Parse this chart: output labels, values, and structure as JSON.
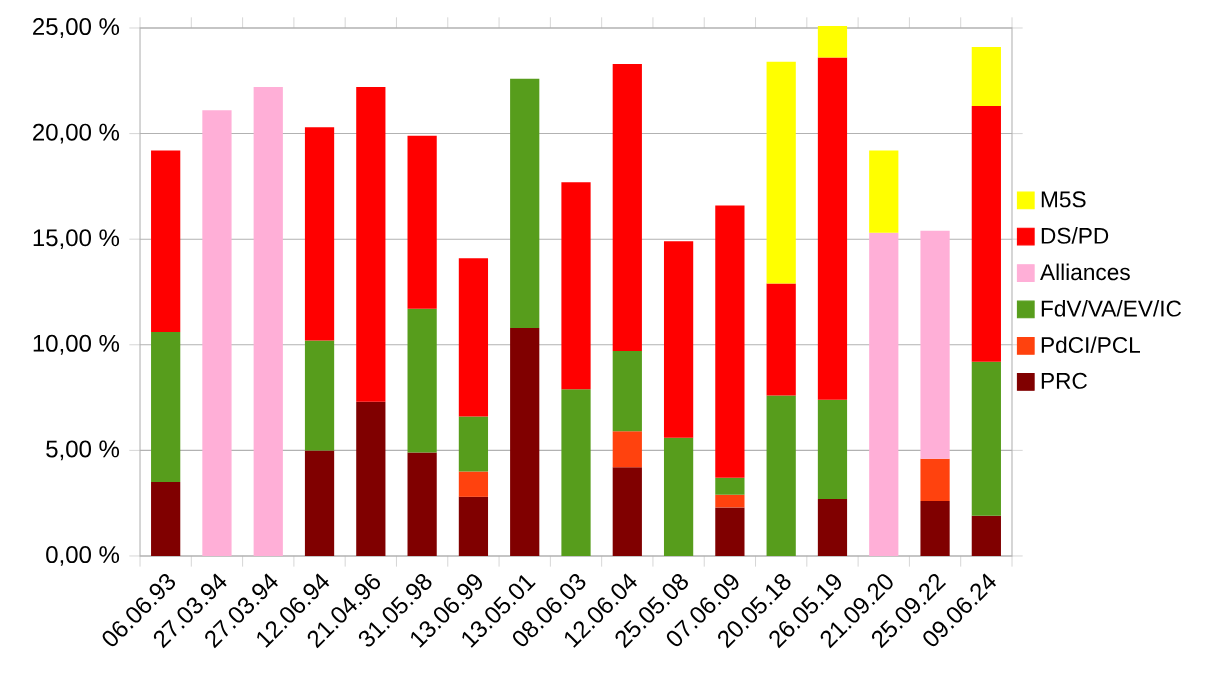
{
  "chart_data": {
    "type": "bar",
    "stacked": true,
    "categories": [
      "06.06.93",
      "27.03.94",
      "27.03.94",
      "12.06.94",
      "21.04.96",
      "31.05.98",
      "13.06.99",
      "13.05.01",
      "08.06.03",
      "12.06.04",
      "25.05.08",
      "07.06.09",
      "20.05.18",
      "26.05.19",
      "21.09.20",
      "25.09.22",
      "09.06.24"
    ],
    "series": [
      {
        "name": "PRC",
        "color": "#800000",
        "values": [
          3.5,
          null,
          null,
          5.0,
          7.3,
          4.9,
          2.8,
          10.8,
          null,
          4.2,
          null,
          2.3,
          null,
          2.7,
          null,
          2.6,
          1.9
        ]
      },
      {
        "name": "PdCI/PCL",
        "color": "#ff420e",
        "values": [
          null,
          null,
          null,
          null,
          null,
          null,
          1.2,
          null,
          null,
          1.7,
          null,
          0.6,
          null,
          null,
          null,
          2.0,
          null
        ]
      },
      {
        "name": "FdV/VA/EV/IC",
        "color": "#579d1c",
        "values": [
          7.1,
          null,
          null,
          5.2,
          null,
          6.8,
          2.6,
          11.8,
          7.9,
          3.8,
          5.6,
          0.8,
          7.6,
          4.7,
          null,
          null,
          7.3
        ]
      },
      {
        "name": "Alliances",
        "color": "#ffafd7",
        "values": [
          null,
          21.1,
          22.2,
          null,
          null,
          null,
          null,
          null,
          null,
          null,
          null,
          null,
          null,
          null,
          15.3,
          10.8,
          null
        ]
      },
      {
        "name": "DS/PD",
        "color": "#ff0000",
        "values": [
          8.6,
          null,
          null,
          10.1,
          14.9,
          8.2,
          7.5,
          null,
          9.8,
          13.6,
          9.3,
          12.9,
          5.3,
          16.2,
          null,
          null,
          12.1
        ]
      },
      {
        "name": "M5S",
        "color": "#ffff00",
        "values": [
          null,
          null,
          null,
          null,
          null,
          null,
          null,
          null,
          null,
          null,
          null,
          null,
          10.5,
          1.5,
          3.9,
          null,
          2.8
        ]
      }
    ],
    "ylim": [
      0,
      25
    ],
    "yticks": [
      {
        "value": 0,
        "label": "0,00 %"
      },
      {
        "value": 5,
        "label": "5,00 %"
      },
      {
        "value": 10,
        "label": "10,00 %"
      },
      {
        "value": 15,
        "label": "15,00 %"
      },
      {
        "value": 20,
        "label": "20,00 %"
      },
      {
        "value": 25,
        "label": "25,00 %"
      }
    ],
    "grid": "y",
    "legend": "right"
  }
}
